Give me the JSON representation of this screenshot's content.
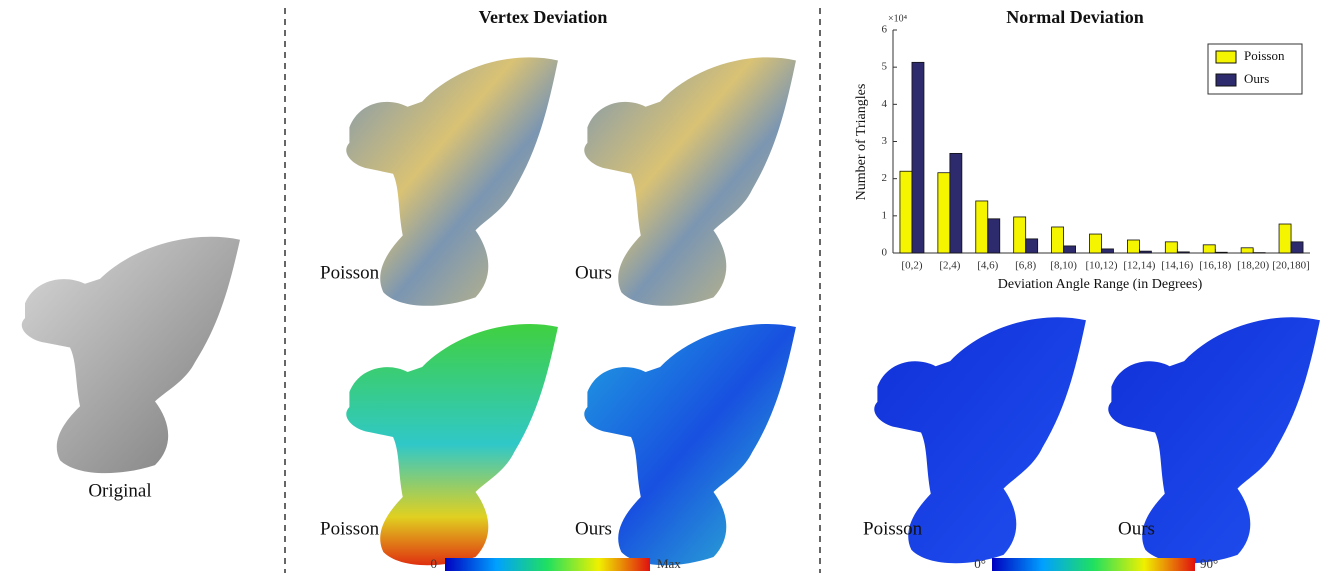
{
  "original": {
    "label": "Original"
  },
  "vertex_deviation": {
    "title": "Vertex Deviation",
    "labels": [
      "Poisson",
      "Ours",
      "Poisson",
      "Ours"
    ],
    "colorbar": [
      "0",
      "Max"
    ]
  },
  "normal_deviation": {
    "labels": [
      "Poisson",
      "Ours"
    ],
    "colorbar": [
      "0°",
      "90°"
    ]
  },
  "chart_data": {
    "type": "bar",
    "title": "Normal Deviation",
    "y_label": "Number of Triangles",
    "x_label": "Deviation Angle Range (in Degrees)",
    "y_scale_label": "×10⁴",
    "categories": [
      "[0,2)",
      "[2,4)",
      "[4,6)",
      "[6,8)",
      "[8,10)",
      "[10,12)",
      "[12,14)",
      "[14,16)",
      "[16,18)",
      "[18,20)",
      "[20,180]"
    ],
    "series": [
      {
        "name": "Poisson",
        "color": "#f5f500",
        "values": [
          2.2,
          2.16,
          1.4,
          0.97,
          0.7,
          0.51,
          0.35,
          0.3,
          0.22,
          0.14,
          0.78
        ]
      },
      {
        "name": "Ours",
        "color": "#2e2a6e",
        "values": [
          5.13,
          2.68,
          0.92,
          0.38,
          0.19,
          0.11,
          0.05,
          0.03,
          0.02,
          0.01,
          0.3
        ]
      }
    ],
    "ylim": [
      0,
      6
    ],
    "yticks": [
      0,
      1,
      2,
      3,
      4,
      5,
      6
    ],
    "legend": "upper right"
  }
}
